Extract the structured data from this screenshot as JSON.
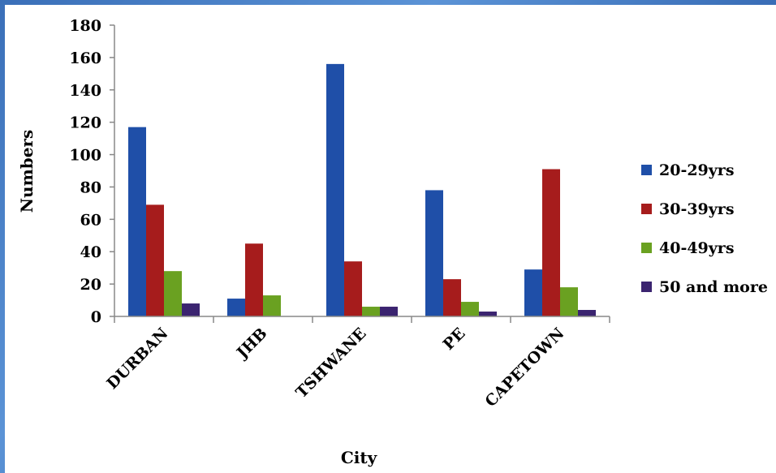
{
  "chart_data": {
    "type": "bar",
    "title": "",
    "xlabel": "City",
    "ylabel": "Numbers",
    "ylim": [
      0,
      180
    ],
    "yticks": [
      0,
      20,
      40,
      60,
      80,
      100,
      120,
      140,
      160,
      180
    ],
    "grid": false,
    "legend_position": "right",
    "categories": [
      "DURBAN",
      "JHB",
      "TSHWANE",
      "PE",
      "CAPETOWN"
    ],
    "series": [
      {
        "name": "20-29yrs",
        "color": "#1f4fa8",
        "values": [
          117,
          11,
          156,
          78,
          29
        ]
      },
      {
        "name": "30-39yrs",
        "color": "#a61c1c",
        "values": [
          69,
          45,
          34,
          23,
          91
        ]
      },
      {
        "name": "40-49yrs",
        "color": "#6aa121",
        "values": [
          28,
          13,
          6,
          9,
          18
        ]
      },
      {
        "name": "50 and more",
        "color": "#3b2470",
        "values": [
          8,
          0,
          6,
          3,
          4
        ]
      }
    ]
  }
}
